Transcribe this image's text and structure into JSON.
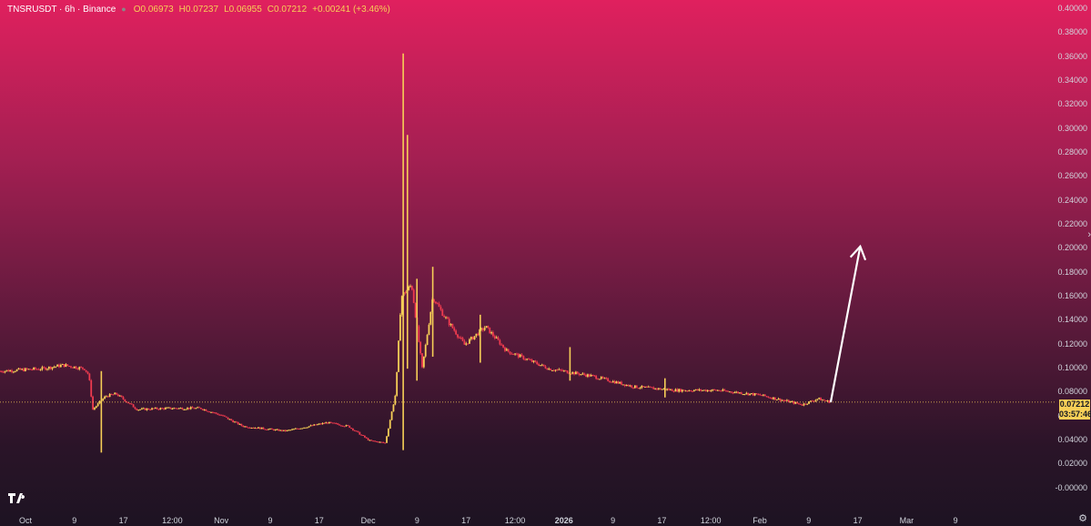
{
  "legend": {
    "symbol": "TNSRUSDT · 6h · Binance",
    "o_key": "O",
    "o_val": "0.06973",
    "h_key": "H",
    "h_val": "0.07237",
    "l_key": "L",
    "l_val": "0.06955",
    "c_key": "C",
    "c_val": "0.07212",
    "change": "+0.00241 (+3.46%)"
  },
  "price_tag": {
    "price": "0.07212",
    "countdown": "03:57:46"
  },
  "colors": {
    "up": "#f7cf57",
    "down": "#ef3b4f",
    "arrow": "#ffffff",
    "last_price_line": "#f7cf57"
  },
  "icons": {
    "logo": "tradingview-logo-icon",
    "settings": "gear-icon"
  },
  "chart_data": {
    "type": "candlestick",
    "y_axis": {
      "range": [
        -0.01,
        0.4
      ],
      "ticks": [
        "0.40000",
        "0.38000",
        "0.36000",
        "0.34000",
        "0.32000",
        "0.30000",
        "0.28000",
        "0.26000",
        "0.24000",
        "0.22000",
        "0.20000",
        "0.18000",
        "0.16000",
        "0.14000",
        "0.12000",
        "0.10000",
        "0.08000",
        "0.06000",
        "0.04000",
        "0.02000",
        "-0.00000"
      ],
      "tick_values": [
        0.4,
        0.38,
        0.36,
        0.34,
        0.32,
        0.3,
        0.28,
        0.26,
        0.24,
        0.22,
        0.2,
        0.18,
        0.16,
        0.14,
        0.12,
        0.1,
        0.08,
        0.06,
        0.04,
        0.02,
        0.0
      ]
    },
    "x_axis": {
      "ticks": [
        {
          "label": "Oct",
          "bold": false
        },
        {
          "label": "9",
          "bold": false
        },
        {
          "label": "17",
          "bold": false
        },
        {
          "label": "12:00",
          "bold": false
        },
        {
          "label": "Nov",
          "bold": false
        },
        {
          "label": "9",
          "bold": false
        },
        {
          "label": "17",
          "bold": false
        },
        {
          "label": "Dec",
          "bold": false
        },
        {
          "label": "9",
          "bold": false
        },
        {
          "label": "17",
          "bold": false
        },
        {
          "label": "12:00",
          "bold": false
        },
        {
          "label": "2026",
          "bold": true
        },
        {
          "label": "9",
          "bold": false
        },
        {
          "label": "17",
          "bold": false
        },
        {
          "label": "12:00",
          "bold": false
        },
        {
          "label": "Feb",
          "bold": false
        },
        {
          "label": "9",
          "bold": false
        },
        {
          "label": "17",
          "bold": false
        },
        {
          "label": "Mar",
          "bold": false
        },
        {
          "label": "9",
          "bold": false
        }
      ]
    },
    "last_price": 0.07212,
    "price_path": [
      [
        0,
        0.098
      ],
      [
        0.04,
        0.1
      ],
      [
        0.06,
        0.103
      ],
      [
        0.08,
        0.1
      ],
      [
        0.084,
        0.095
      ],
      [
        0.088,
        0.066
      ],
      [
        0.1,
        0.077
      ],
      [
        0.11,
        0.079
      ],
      [
        0.13,
        0.066
      ],
      [
        0.16,
        0.067
      ],
      [
        0.19,
        0.067
      ],
      [
        0.21,
        0.061
      ],
      [
        0.23,
        0.052
      ],
      [
        0.27,
        0.048
      ],
      [
        0.31,
        0.055
      ],
      [
        0.33,
        0.052
      ],
      [
        0.35,
        0.04
      ],
      [
        0.365,
        0.038
      ],
      [
        0.375,
        0.08
      ],
      [
        0.38,
        0.16
      ],
      [
        0.39,
        0.17
      ],
      [
        0.4,
        0.1
      ],
      [
        0.41,
        0.16
      ],
      [
        0.42,
        0.145
      ],
      [
        0.44,
        0.12
      ],
      [
        0.46,
        0.135
      ],
      [
        0.48,
        0.115
      ],
      [
        0.52,
        0.1
      ],
      [
        0.56,
        0.094
      ],
      [
        0.6,
        0.085
      ],
      [
        0.64,
        0.082
      ],
      [
        0.68,
        0.082
      ],
      [
        0.72,
        0.078
      ],
      [
        0.75,
        0.072
      ],
      [
        0.76,
        0.07
      ],
      [
        0.775,
        0.075
      ],
      [
        0.787,
        0.072
      ]
    ],
    "spikes": [
      {
        "x": 0.096,
        "low": 0.03,
        "high": 0.098
      },
      {
        "x": 0.382,
        "low": 0.032,
        "high": 0.363
      },
      {
        "x": 0.386,
        "low": 0.1,
        "high": 0.295
      },
      {
        "x": 0.395,
        "low": 0.09,
        "high": 0.175
      },
      {
        "x": 0.41,
        "low": 0.11,
        "high": 0.185
      },
      {
        "x": 0.455,
        "low": 0.105,
        "high": 0.145
      },
      {
        "x": 0.54,
        "low": 0.09,
        "high": 0.118
      },
      {
        "x": 0.63,
        "low": 0.076,
        "high": 0.092
      }
    ],
    "annotation_arrow": {
      "from": [
        0.787,
        0.072
      ],
      "to": [
        0.815,
        0.202
      ]
    }
  }
}
